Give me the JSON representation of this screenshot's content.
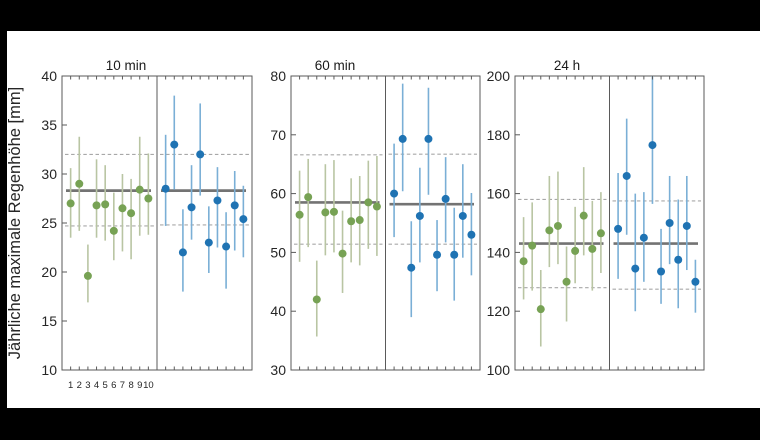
{
  "figure": {
    "ylabel": "Jährliche maximale Regenhöhe [mm]",
    "background": "#000000",
    "plot_background": "#ffffff",
    "colors": {
      "green_marker": "#77A254",
      "green_errorbar": "#B9C5A3",
      "blue_marker": "#1F73B3",
      "blue_errorbar": "#7AAFD6",
      "mean_line": "#737373",
      "ci_dashed_line": "#A8A8A8",
      "axis_frame": "#5A5A5A",
      "text": "#262626"
    },
    "x_tick_labels": [
      "1",
      "2",
      "3",
      "4",
      "5",
      "6",
      "7",
      "8",
      "9",
      "10"
    ]
  },
  "chart_data": [
    {
      "type": "scatter",
      "title": "10 min",
      "ylim": [
        10,
        40
      ],
      "yticks": [
        40,
        35,
        30,
        25,
        20,
        15,
        10
      ],
      "ytick_labels": [
        "40",
        "35",
        "30",
        "25",
        "20",
        "15",
        "10"
      ],
      "groups": [
        {
          "name": "green",
          "mean": 28.3,
          "ci": [
            24.7,
            32.0
          ],
          "y": [
            27.0,
            29.0,
            19.6,
            26.8,
            26.9,
            24.2,
            26.5,
            26.0,
            28.4,
            27.5
          ],
          "lo": [
            23.5,
            24.2,
            16.9,
            23.5,
            23.2,
            21.2,
            22.1,
            21.3,
            23.7,
            23.8
          ],
          "hi": [
            30.6,
            33.8,
            22.8,
            31.5,
            30.9,
            28.1,
            30.0,
            29.5,
            33.8,
            32.1
          ]
        },
        {
          "name": "blue",
          "mean": 28.3,
          "ci": [
            24.8,
            32.0
          ],
          "y": [
            28.5,
            33.0,
            22.0,
            26.6,
            32.0,
            23.0,
            27.3,
            22.6,
            26.8,
            25.4
          ],
          "lo": [
            24.7,
            28.4,
            18.0,
            23.3,
            27.8,
            19.9,
            22.5,
            18.3,
            22.2,
            21.5
          ],
          "hi": [
            34.0,
            38.0,
            26.4,
            30.9,
            37.2,
            26.7,
            30.7,
            26.1,
            30.3,
            28.8
          ]
        }
      ]
    },
    {
      "type": "scatter",
      "title": "60 min",
      "ylim": [
        30,
        80
      ],
      "yticks": [
        80,
        70,
        60,
        50,
        40,
        30
      ],
      "ytick_labels": [
        "80",
        "70",
        "60",
        "50",
        "40",
        "30"
      ],
      "groups": [
        {
          "name": "green",
          "mean": 58.5,
          "ci": [
            51.4,
            66.6
          ],
          "y": [
            56.4,
            59.4,
            42.0,
            56.8,
            56.9,
            49.8,
            55.3,
            55.5,
            58.5,
            57.8
          ],
          "lo": [
            48.4,
            50.9,
            35.7,
            49.5,
            50.0,
            43.1,
            48.3,
            47.8,
            50.6,
            49.4
          ],
          "hi": [
            63.9,
            65.9,
            48.6,
            65.0,
            65.7,
            57.1,
            62.6,
            63.0,
            65.6,
            66.4
          ]
        },
        {
          "name": "blue",
          "mean": 58.2,
          "ci": [
            51.4,
            66.7
          ],
          "y": [
            60.0,
            69.3,
            47.4,
            56.2,
            69.3,
            49.6,
            59.1,
            49.6,
            56.2,
            53.0
          ],
          "lo": [
            52.6,
            60.4,
            39.0,
            48.3,
            59.8,
            43.4,
            51.7,
            41.8,
            49.1,
            46.1
          ],
          "hi": [
            68.5,
            78.7,
            55.3,
            64.4,
            78.0,
            55.5,
            66.2,
            57.6,
            65.0,
            60.1
          ]
        }
      ]
    },
    {
      "type": "scatter",
      "title": "24 h",
      "ylim": [
        100,
        200
      ],
      "yticks": [
        200,
        180,
        160,
        140,
        120,
        100
      ],
      "ytick_labels": [
        "200",
        "180",
        "160",
        "140",
        "120",
        "100"
      ],
      "groups": [
        {
          "name": "green",
          "mean": 143.0,
          "ci": [
            128.0,
            158.0
          ],
          "y": [
            137.0,
            142.3,
            120.7,
            147.5,
            149.0,
            130.0,
            140.5,
            152.5,
            141.2,
            146.5
          ],
          "lo": [
            124.0,
            127.0,
            108.0,
            135.0,
            136.0,
            116.5,
            129.5,
            139.0,
            127.0,
            133.0
          ],
          "hi": [
            152.0,
            157.0,
            134.0,
            166.0,
            167.5,
            142.0,
            155.5,
            169.0,
            157.5,
            160.5
          ]
        },
        {
          "name": "blue",
          "mean": 143.0,
          "ci": [
            127.5,
            157.5
          ],
          "y": [
            148.0,
            166.0,
            134.5,
            145.0,
            176.5,
            133.5,
            150.0,
            137.5,
            149.0,
            130.0
          ],
          "lo": [
            131.0,
            146.0,
            120.0,
            130.0,
            156.5,
            122.5,
            136.0,
            121.0,
            134.0,
            119.5
          ],
          "hi": [
            167.0,
            185.5,
            160.0,
            160.5,
            200.0,
            148.0,
            166.0,
            158.0,
            166.0,
            137.5
          ]
        }
      ]
    }
  ]
}
